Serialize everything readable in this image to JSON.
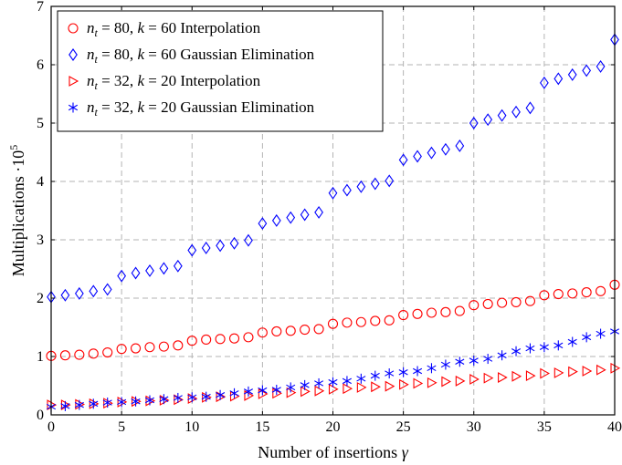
{
  "chart_data": {
    "type": "scatter",
    "xlabel": "Number of insertions γ",
    "ylabel": "Multiplications ·10",
    "ylabel_sup": "5",
    "xlim": [
      0,
      40
    ],
    "ylim": [
      0,
      7
    ],
    "xticks": [
      0,
      5,
      10,
      15,
      20,
      25,
      30,
      35,
      40
    ],
    "yticks": [
      0,
      1,
      2,
      3,
      4,
      5,
      6,
      7
    ],
    "grid": true,
    "legend_position": "top-left",
    "x": [
      0,
      1,
      2,
      3,
      4,
      5,
      6,
      7,
      8,
      9,
      10,
      11,
      12,
      13,
      14,
      15,
      16,
      17,
      18,
      19,
      20,
      21,
      22,
      23,
      24,
      25,
      26,
      27,
      28,
      29,
      30,
      31,
      32,
      33,
      34,
      35,
      36,
      37,
      38,
      39,
      40
    ],
    "series": [
      {
        "name": "n_t = 80, k = 60 Interpolation",
        "marker": "circle",
        "color": "#ff0000",
        "values": [
          1.01,
          1.02,
          1.03,
          1.05,
          1.07,
          1.13,
          1.14,
          1.16,
          1.17,
          1.19,
          1.27,
          1.29,
          1.3,
          1.31,
          1.33,
          1.41,
          1.43,
          1.44,
          1.46,
          1.47,
          1.56,
          1.58,
          1.59,
          1.61,
          1.62,
          1.71,
          1.73,
          1.75,
          1.76,
          1.78,
          1.88,
          1.9,
          1.92,
          1.93,
          1.95,
          2.05,
          2.07,
          2.08,
          2.1,
          2.12,
          2.23
        ]
      },
      {
        "name": "n_t = 80, k = 60 Gaussian Elimination",
        "marker": "diamond",
        "color": "#0000ff",
        "values": [
          2.02,
          2.05,
          2.08,
          2.12,
          2.15,
          2.38,
          2.43,
          2.47,
          2.51,
          2.55,
          2.82,
          2.86,
          2.9,
          2.94,
          2.99,
          3.28,
          3.33,
          3.38,
          3.43,
          3.47,
          3.8,
          3.85,
          3.91,
          3.96,
          4.01,
          4.37,
          4.43,
          4.49,
          4.55,
          4.61,
          5.0,
          5.06,
          5.13,
          5.19,
          5.26,
          5.69,
          5.76,
          5.83,
          5.9,
          5.97,
          6.43
        ]
      },
      {
        "name": "n_t = 32, k = 20 Interpolation",
        "marker": "triangle-right",
        "color": "#ff0000",
        "values": [
          0.17,
          0.17,
          0.18,
          0.19,
          0.2,
          0.22,
          0.23,
          0.24,
          0.25,
          0.26,
          0.28,
          0.3,
          0.31,
          0.32,
          0.33,
          0.36,
          0.37,
          0.38,
          0.4,
          0.41,
          0.44,
          0.45,
          0.47,
          0.48,
          0.49,
          0.52,
          0.54,
          0.55,
          0.57,
          0.58,
          0.61,
          0.63,
          0.64,
          0.66,
          0.67,
          0.71,
          0.72,
          0.74,
          0.75,
          0.77,
          0.8
        ]
      },
      {
        "name": "n_t = 32, k = 20 Gaussian Elimination",
        "marker": "asterisk",
        "color": "#0000ff",
        "values": [
          0.14,
          0.15,
          0.17,
          0.19,
          0.21,
          0.22,
          0.23,
          0.25,
          0.27,
          0.29,
          0.3,
          0.31,
          0.34,
          0.37,
          0.4,
          0.42,
          0.43,
          0.47,
          0.51,
          0.54,
          0.56,
          0.58,
          0.62,
          0.67,
          0.71,
          0.73,
          0.75,
          0.8,
          0.86,
          0.91,
          0.93,
          0.96,
          1.02,
          1.09,
          1.14,
          1.16,
          1.19,
          1.25,
          1.33,
          1.39,
          1.43
        ]
      }
    ],
    "legend": [
      {
        "pre": "n",
        "sub": "t",
        "mid": " = 80, ",
        "k": "k",
        "post": " = 60",
        "desc": "Interpolation"
      },
      {
        "pre": "n",
        "sub": "t",
        "mid": " = 80, ",
        "k": "k",
        "post": " = 60",
        "desc": "Gaussian Elimination"
      },
      {
        "pre": "n",
        "sub": "t",
        "mid": " = 32, ",
        "k": "k",
        "post": " = 20",
        "desc": "Interpolation"
      },
      {
        "pre": "n",
        "sub": "t",
        "mid": " = 32, ",
        "k": "k",
        "post": " = 20",
        "desc": "Gaussian Elimination"
      }
    ]
  }
}
